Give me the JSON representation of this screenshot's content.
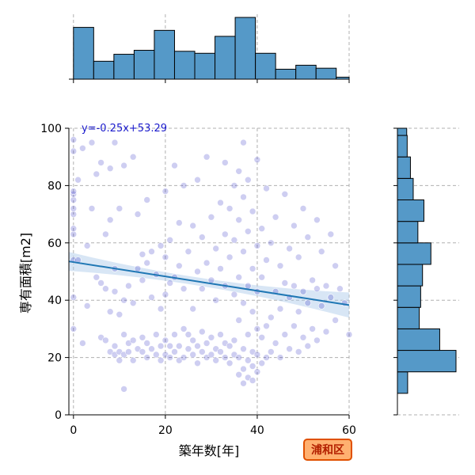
{
  "chart_data": {
    "type": "scatter",
    "title": "",
    "xlabel": "築年数[年]",
    "ylabel": "専有面積[m2]",
    "xlim": [
      -1,
      60
    ],
    "ylim": [
      0,
      100
    ],
    "xticks": [
      0,
      20,
      40,
      60
    ],
    "yticks": [
      0,
      20,
      40,
      60,
      80,
      100
    ],
    "grid": true,
    "regression": {
      "label": "y=-0.25x+53.29",
      "slope": -0.25,
      "intercept": 53.29
    },
    "badge": "浦和区",
    "colors": {
      "points": "#2020c0",
      "regression_line": "#1f77b4",
      "confidence_band": "#a8c8e8",
      "histogram": "#5599c8",
      "badge_fill": "#ffb070",
      "badge_border": "#e05000",
      "equation_text": "#1a1acc"
    },
    "top_histogram": {
      "bin_edges": [
        0,
        4.4,
        8.8,
        13.2,
        17.6,
        22,
        26.4,
        30.8,
        35.2,
        39.6,
        44,
        48.4,
        52.8,
        57.2,
        60
      ],
      "counts": [
        52,
        18,
        25,
        29,
        49,
        28,
        26,
        43,
        62,
        26,
        10,
        14,
        11,
        2
      ]
    },
    "right_histogram": {
      "bin_edges": [
        7.5,
        15,
        22.5,
        30,
        37.5,
        45,
        52.5,
        60,
        67.5,
        75,
        82.5,
        90,
        97.5,
        100
      ],
      "counts": [
        22,
        126,
        91,
        47,
        50,
        54,
        72,
        44,
        57,
        34,
        28,
        21,
        20
      ]
    },
    "points": [
      [
        0,
        30
      ],
      [
        0,
        41
      ],
      [
        0,
        54
      ],
      [
        0,
        63
      ],
      [
        0,
        65
      ],
      [
        0,
        70
      ],
      [
        0,
        72
      ],
      [
        0,
        75
      ],
      [
        0,
        77
      ],
      [
        0,
        78
      ],
      [
        0,
        92
      ],
      [
        0,
        96
      ],
      [
        1,
        54
      ],
      [
        1,
        82
      ],
      [
        2,
        25
      ],
      [
        2,
        93
      ],
      [
        3,
        38
      ],
      [
        3,
        59
      ],
      [
        4,
        72
      ],
      [
        4,
        95
      ],
      [
        5,
        48
      ],
      [
        5,
        84
      ],
      [
        6,
        27
      ],
      [
        6,
        46
      ],
      [
        6,
        88
      ],
      [
        7,
        26
      ],
      [
        7,
        44
      ],
      [
        7,
        63
      ],
      [
        8,
        22
      ],
      [
        8,
        36
      ],
      [
        8,
        68
      ],
      [
        8,
        86
      ],
      [
        9,
        21
      ],
      [
        9,
        24
      ],
      [
        9,
        43
      ],
      [
        9,
        51
      ],
      [
        9,
        95
      ],
      [
        10,
        19
      ],
      [
        10,
        22
      ],
      [
        10,
        35
      ],
      [
        10,
        72
      ],
      [
        11,
        9
      ],
      [
        11,
        21
      ],
      [
        11,
        28
      ],
      [
        11,
        40
      ],
      [
        11,
        87
      ],
      [
        12,
        22
      ],
      [
        12,
        25
      ],
      [
        12,
        45
      ],
      [
        13,
        19
      ],
      [
        13,
        26
      ],
      [
        13,
        39
      ],
      [
        13,
        90
      ],
      [
        14,
        23
      ],
      [
        14,
        51
      ],
      [
        14,
        70
      ],
      [
        15,
        22
      ],
      [
        15,
        27
      ],
      [
        15,
        47
      ],
      [
        15,
        56
      ],
      [
        16,
        20
      ],
      [
        16,
        25
      ],
      [
        16,
        53
      ],
      [
        16,
        75
      ],
      [
        17,
        23
      ],
      [
        17,
        41
      ],
      [
        17,
        57
      ],
      [
        18,
        21
      ],
      [
        18,
        28
      ],
      [
        18,
        49
      ],
      [
        19,
        19
      ],
      [
        19,
        24
      ],
      [
        19,
        37
      ],
      [
        19,
        59
      ],
      [
        20,
        21
      ],
      [
        20,
        26
      ],
      [
        20,
        42
      ],
      [
        20,
        55
      ],
      [
        20,
        78
      ],
      [
        21,
        20
      ],
      [
        21,
        24
      ],
      [
        21,
        46
      ],
      [
        21,
        61
      ],
      [
        22,
        22
      ],
      [
        22,
        28
      ],
      [
        22,
        48
      ],
      [
        22,
        87
      ],
      [
        23,
        19
      ],
      [
        23,
        24
      ],
      [
        23,
        52
      ],
      [
        23,
        67
      ],
      [
        24,
        20
      ],
      [
        24,
        30
      ],
      [
        24,
        44
      ],
      [
        24,
        80
      ],
      [
        25,
        23
      ],
      [
        25,
        28
      ],
      [
        25,
        57
      ],
      [
        26,
        21
      ],
      [
        26,
        26
      ],
      [
        26,
        37
      ],
      [
        26,
        66
      ],
      [
        27,
        18
      ],
      [
        27,
        24
      ],
      [
        27,
        50
      ],
      [
        27,
        82
      ],
      [
        28,
        22
      ],
      [
        28,
        29
      ],
      [
        28,
        44
      ],
      [
        28,
        62
      ],
      [
        29,
        20
      ],
      [
        29,
        25
      ],
      [
        29,
        53
      ],
      [
        29,
        90
      ],
      [
        30,
        21
      ],
      [
        30,
        27
      ],
      [
        30,
        47
      ],
      [
        30,
        69
      ],
      [
        31,
        19
      ],
      [
        31,
        23
      ],
      [
        31,
        40
      ],
      [
        31,
        58
      ],
      [
        32,
        22
      ],
      [
        32,
        28
      ],
      [
        32,
        51
      ],
      [
        32,
        74
      ],
      [
        33,
        20
      ],
      [
        33,
        25
      ],
      [
        33,
        45
      ],
      [
        33,
        63
      ],
      [
        33,
        88
      ],
      [
        34,
        18
      ],
      [
        34,
        24
      ],
      [
        34,
        55
      ],
      [
        34,
        72
      ],
      [
        35,
        21
      ],
      [
        35,
        26
      ],
      [
        35,
        42
      ],
      [
        35,
        61
      ],
      [
        35,
        80
      ],
      [
        36,
        14
      ],
      [
        36,
        20
      ],
      [
        36,
        33
      ],
      [
        36,
        48
      ],
      [
        36,
        68
      ],
      [
        36,
        85
      ],
      [
        37,
        11
      ],
      [
        37,
        16
      ],
      [
        37,
        23
      ],
      [
        37,
        39
      ],
      [
        37,
        57
      ],
      [
        37,
        76
      ],
      [
        37,
        95
      ],
      [
        38,
        13
      ],
      [
        38,
        19
      ],
      [
        38,
        28
      ],
      [
        38,
        45
      ],
      [
        38,
        64
      ],
      [
        38,
        82
      ],
      [
        39,
        12
      ],
      [
        39,
        17
      ],
      [
        39,
        22
      ],
      [
        39,
        36
      ],
      [
        39,
        51
      ],
      [
        39,
        71
      ],
      [
        40,
        15
      ],
      [
        40,
        21
      ],
      [
        40,
        30
      ],
      [
        40,
        43
      ],
      [
        40,
        59
      ],
      [
        40,
        89
      ],
      [
        41,
        18
      ],
      [
        41,
        27
      ],
      [
        41,
        48
      ],
      [
        41,
        65
      ],
      [
        42,
        20
      ],
      [
        42,
        31
      ],
      [
        42,
        54
      ],
      [
        42,
        79
      ],
      [
        43,
        22
      ],
      [
        43,
        34
      ],
      [
        43,
        60
      ],
      [
        44,
        25
      ],
      [
        44,
        43
      ],
      [
        44,
        69
      ],
      [
        45,
        20
      ],
      [
        45,
        37
      ],
      [
        45,
        52
      ],
      [
        46,
        28
      ],
      [
        46,
        46
      ],
      [
        46,
        77
      ],
      [
        47,
        23
      ],
      [
        47,
        41
      ],
      [
        47,
        58
      ],
      [
        48,
        31
      ],
      [
        48,
        45
      ],
      [
        48,
        66
      ],
      [
        49,
        22
      ],
      [
        49,
        36
      ],
      [
        49,
        55
      ],
      [
        50,
        27
      ],
      [
        50,
        43
      ],
      [
        50,
        72
      ],
      [
        51,
        24
      ],
      [
        51,
        39
      ],
      [
        51,
        62
      ],
      [
        52,
        30
      ],
      [
        52,
        47
      ],
      [
        53,
        26
      ],
      [
        53,
        44
      ],
      [
        53,
        68
      ],
      [
        54,
        38
      ],
      [
        54,
        57
      ],
      [
        55,
        29
      ],
      [
        55,
        45
      ],
      [
        56,
        41
      ],
      [
        56,
        63
      ],
      [
        57,
        33
      ],
      [
        57,
        52
      ],
      [
        58,
        44
      ],
      [
        59,
        39
      ],
      [
        60,
        28
      ]
    ]
  }
}
